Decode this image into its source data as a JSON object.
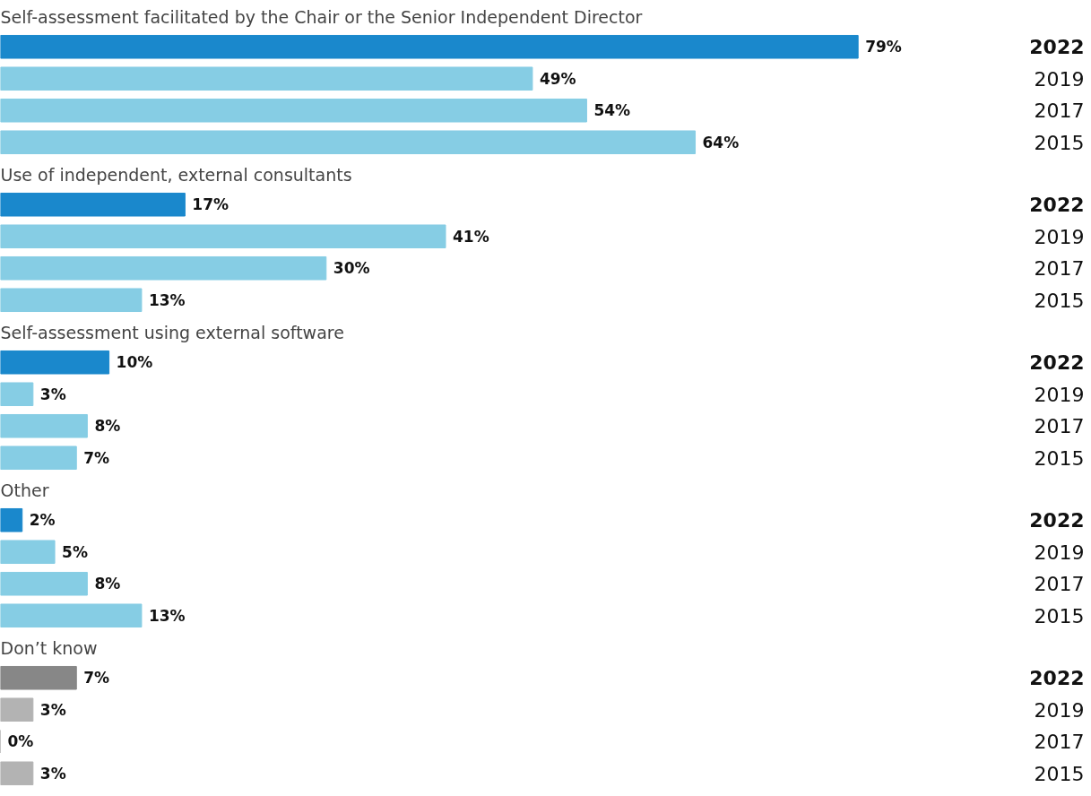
{
  "chart_data": [
    {
      "type": "bar",
      "orientation": "horizontal",
      "title": "Self-assessment facilitated by the Chair or the Senior Independent Director",
      "categories": [
        "2022",
        "2019",
        "2017",
        "2015"
      ],
      "values": [
        79,
        49,
        54,
        64
      ],
      "value_labels": [
        "79%",
        "49%",
        "54%",
        "64%"
      ],
      "colors": [
        "#1a88cc",
        "#86cde4",
        "#86cde4",
        "#86cde4"
      ],
      "tick_labels": "y"
    },
    {
      "type": "bar",
      "orientation": "horizontal",
      "title": "Use of independent, external consultants",
      "categories": [
        "2022",
        "2019",
        "2017",
        "2015"
      ],
      "values": [
        17,
        41,
        30,
        13
      ],
      "value_labels": [
        "17%",
        "41%",
        "30%",
        "13%"
      ],
      "colors": [
        "#1a88cc",
        "#86cde4",
        "#86cde4",
        "#86cde4"
      ],
      "tick_labels": "y"
    },
    {
      "type": "bar",
      "orientation": "horizontal",
      "title": "Self-assessment using external software",
      "categories": [
        "2022",
        "2019",
        "2017",
        "2015"
      ],
      "values": [
        10,
        3,
        8,
        7
      ],
      "value_labels": [
        "10%",
        "3%",
        "8%",
        "7%"
      ],
      "colors": [
        "#1a88cc",
        "#86cde4",
        "#86cde4",
        "#86cde4"
      ],
      "tick_labels": "y"
    },
    {
      "type": "bar",
      "orientation": "horizontal",
      "title": "Other",
      "categories": [
        "2022",
        "2019",
        "2017",
        "2015"
      ],
      "values": [
        2,
        5,
        8,
        13
      ],
      "value_labels": [
        "2%",
        "5%",
        "8%",
        "13%"
      ],
      "colors": [
        "#1a88cc",
        "#86cde4",
        "#86cde4",
        "#86cde4"
      ],
      "tick_labels": "y"
    },
    {
      "type": "bar",
      "orientation": "horizontal",
      "title": "Don’t know",
      "categories": [
        "2022",
        "2019",
        "2017",
        "2015"
      ],
      "values": [
        7,
        3,
        0,
        3
      ],
      "value_labels": [
        "7%",
        "3%",
        "0%",
        "3%"
      ],
      "colors": [
        "#878787",
        "#b3b3b3",
        "#b3b3b3",
        "#b3b3b3"
      ],
      "tick_labels": "y"
    }
  ]
}
